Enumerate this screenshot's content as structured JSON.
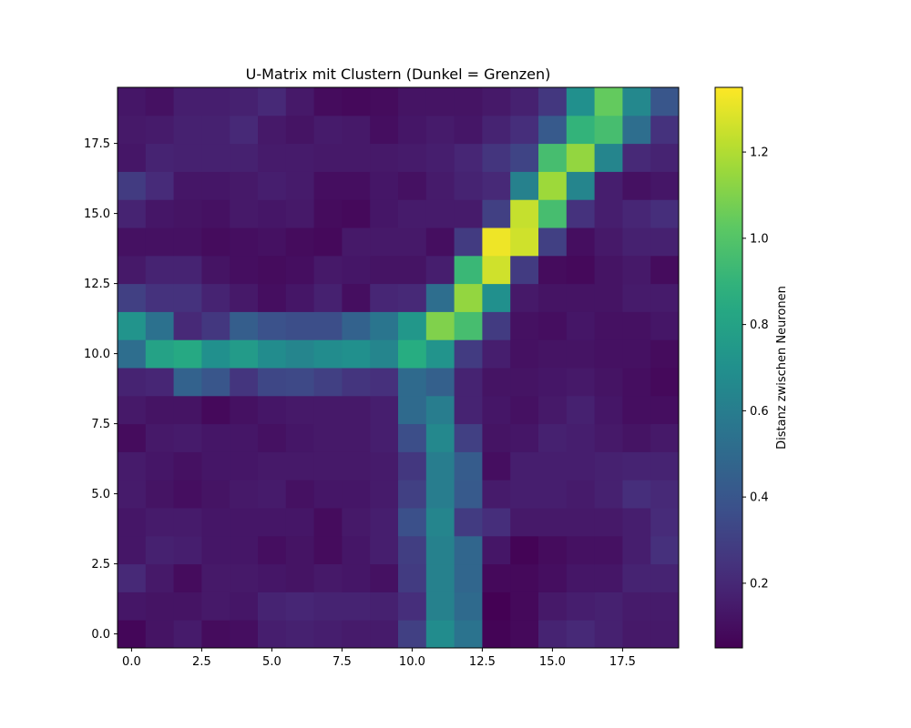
{
  "chart_data": {
    "type": "heatmap",
    "title": "U-Matrix mit Clustern (Dunkel = Grenzen)",
    "xlabel": "",
    "ylabel": "",
    "colorbar_label": "Distanz zwischen Neuronen",
    "colormap": "viridis",
    "vmin": 0.05,
    "vmax": 1.35,
    "xlim": [
      -0.5,
      19.5
    ],
    "ylim": [
      -0.5,
      19.5
    ],
    "origin": "lower",
    "x_ticks": [
      0.0,
      2.5,
      5.0,
      7.5,
      10.0,
      12.5,
      15.0,
      17.5
    ],
    "x_tick_labels": [
      "0.0",
      "2.5",
      "5.0",
      "7.5",
      "10.0",
      "12.5",
      "15.0",
      "17.5"
    ],
    "y_ticks": [
      0.0,
      2.5,
      5.0,
      7.5,
      10.0,
      12.5,
      15.0,
      17.5
    ],
    "y_tick_labels": [
      "0.0",
      "2.5",
      "5.0",
      "7.5",
      "10.0",
      "12.5",
      "15.0",
      "17.5"
    ],
    "colorbar_ticks": [
      0.2,
      0.4,
      0.6,
      0.8,
      1.0,
      1.2
    ],
    "colorbar_tick_labels": [
      "0.2",
      "0.4",
      "0.6",
      "0.8",
      "1.0",
      "1.2"
    ],
    "values": [
      [
        0.07,
        0.12,
        0.15,
        0.09,
        0.1,
        0.16,
        0.17,
        0.16,
        0.15,
        0.15,
        0.3,
        0.68,
        0.55,
        0.06,
        0.08,
        0.18,
        0.2,
        0.17,
        0.14,
        0.14
      ],
      [
        0.13,
        0.12,
        0.12,
        0.14,
        0.13,
        0.18,
        0.19,
        0.18,
        0.18,
        0.17,
        0.22,
        0.62,
        0.5,
        0.05,
        0.08,
        0.14,
        0.16,
        0.17,
        0.15,
        0.15
      ],
      [
        0.2,
        0.14,
        0.09,
        0.14,
        0.14,
        0.13,
        0.12,
        0.14,
        0.13,
        0.11,
        0.28,
        0.62,
        0.48,
        0.08,
        0.08,
        0.1,
        0.13,
        0.13,
        0.18,
        0.18
      ],
      [
        0.13,
        0.17,
        0.16,
        0.13,
        0.13,
        0.1,
        0.12,
        0.09,
        0.13,
        0.16,
        0.29,
        0.62,
        0.48,
        0.13,
        0.06,
        0.09,
        0.11,
        0.11,
        0.16,
        0.23
      ],
      [
        0.13,
        0.15,
        0.15,
        0.13,
        0.13,
        0.13,
        0.13,
        0.09,
        0.14,
        0.16,
        0.37,
        0.64,
        0.28,
        0.22,
        0.14,
        0.14,
        0.14,
        0.14,
        0.16,
        0.21
      ],
      [
        0.15,
        0.12,
        0.1,
        0.12,
        0.14,
        0.15,
        0.11,
        0.13,
        0.13,
        0.15,
        0.3,
        0.6,
        0.42,
        0.15,
        0.16,
        0.16,
        0.15,
        0.17,
        0.22,
        0.2
      ],
      [
        0.15,
        0.13,
        0.11,
        0.13,
        0.13,
        0.14,
        0.14,
        0.14,
        0.14,
        0.15,
        0.26,
        0.6,
        0.43,
        0.1,
        0.16,
        0.16,
        0.16,
        0.17,
        0.18,
        0.18
      ],
      [
        0.09,
        0.14,
        0.15,
        0.13,
        0.13,
        0.11,
        0.13,
        0.14,
        0.14,
        0.16,
        0.36,
        0.66,
        0.3,
        0.12,
        0.13,
        0.17,
        0.16,
        0.14,
        0.12,
        0.14
      ],
      [
        0.14,
        0.12,
        0.12,
        0.08,
        0.11,
        0.13,
        0.14,
        0.14,
        0.14,
        0.16,
        0.5,
        0.6,
        0.18,
        0.13,
        0.11,
        0.14,
        0.17,
        0.13,
        0.1,
        0.1
      ],
      [
        0.18,
        0.19,
        0.46,
        0.4,
        0.25,
        0.33,
        0.34,
        0.3,
        0.25,
        0.23,
        0.5,
        0.45,
        0.18,
        0.12,
        0.12,
        0.13,
        0.14,
        0.12,
        0.1,
        0.08
      ],
      [
        0.52,
        0.8,
        0.84,
        0.7,
        0.76,
        0.68,
        0.64,
        0.68,
        0.7,
        0.64,
        0.86,
        0.72,
        0.28,
        0.16,
        0.11,
        0.12,
        0.12,
        0.11,
        0.11,
        0.09
      ],
      [
        0.72,
        0.54,
        0.2,
        0.26,
        0.44,
        0.38,
        0.36,
        0.36,
        0.46,
        0.56,
        0.74,
        1.1,
        0.96,
        0.28,
        0.11,
        0.1,
        0.13,
        0.11,
        0.11,
        0.13
      ],
      [
        0.3,
        0.24,
        0.24,
        0.18,
        0.14,
        0.1,
        0.13,
        0.17,
        0.1,
        0.19,
        0.2,
        0.52,
        1.14,
        0.7,
        0.14,
        0.12,
        0.12,
        0.12,
        0.15,
        0.15
      ],
      [
        0.14,
        0.18,
        0.18,
        0.12,
        0.1,
        0.09,
        0.1,
        0.14,
        0.13,
        0.12,
        0.12,
        0.16,
        0.92,
        1.26,
        0.28,
        0.09,
        0.08,
        0.12,
        0.14,
        0.09
      ],
      [
        0.11,
        0.11,
        0.11,
        0.09,
        0.1,
        0.11,
        0.09,
        0.08,
        0.14,
        0.14,
        0.14,
        0.1,
        0.28,
        1.32,
        1.26,
        0.3,
        0.1,
        0.14,
        0.17,
        0.17
      ],
      [
        0.18,
        0.13,
        0.12,
        0.11,
        0.14,
        0.13,
        0.14,
        0.09,
        0.08,
        0.13,
        0.15,
        0.15,
        0.15,
        0.3,
        1.24,
        0.96,
        0.24,
        0.16,
        0.19,
        0.22
      ],
      [
        0.28,
        0.21,
        0.13,
        0.13,
        0.14,
        0.16,
        0.15,
        0.1,
        0.1,
        0.13,
        0.11,
        0.15,
        0.18,
        0.2,
        0.62,
        1.16,
        0.64,
        0.16,
        0.11,
        0.13
      ],
      [
        0.13,
        0.18,
        0.17,
        0.17,
        0.17,
        0.15,
        0.15,
        0.14,
        0.14,
        0.14,
        0.15,
        0.16,
        0.19,
        0.25,
        0.32,
        0.96,
        1.14,
        0.64,
        0.2,
        0.18
      ],
      [
        0.14,
        0.15,
        0.17,
        0.17,
        0.2,
        0.14,
        0.12,
        0.15,
        0.14,
        0.1,
        0.13,
        0.15,
        0.13,
        0.18,
        0.22,
        0.42,
        0.9,
        0.96,
        0.52,
        0.24
      ],
      [
        0.13,
        0.11,
        0.16,
        0.16,
        0.17,
        0.2,
        0.14,
        0.09,
        0.08,
        0.09,
        0.12,
        0.12,
        0.12,
        0.14,
        0.17,
        0.26,
        0.7,
        1.04,
        0.66,
        0.4
      ]
    ]
  }
}
